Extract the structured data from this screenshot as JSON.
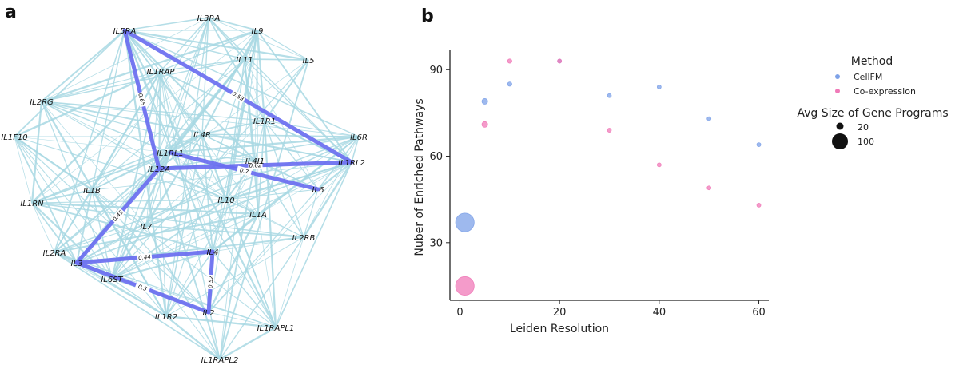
{
  "panels": {
    "a": {
      "letter": "a"
    },
    "b": {
      "letter": "b"
    }
  },
  "colors": {
    "bg_edge": "#a8d8e3",
    "hi_edge": "#6a6ef0",
    "cellfm": "#7ea2e8",
    "coexp": "#f07ab8"
  },
  "chart_data": [
    {
      "type": "network",
      "nodes": [
        "IL5RA",
        "IL3RA",
        "IL9",
        "IL11",
        "IL5",
        "IL1RAP",
        "IL2RG",
        "IL1R1",
        "IL6R",
        "IL1F10",
        "IL4R",
        "IL1RL1",
        "IL4I1",
        "IL1RL2",
        "IL12A",
        "IL6",
        "IL1B",
        "IL10",
        "IL1RN",
        "IL1A",
        "IL7",
        "IL2RB",
        "IL2RA",
        "IL3",
        "IL4",
        "IL6ST",
        "IL2",
        "IL1R2",
        "IL1RAPL1",
        "IL1RAPL2"
      ],
      "highlighted_edges": [
        {
          "source": "IL5RA",
          "target": "IL12A",
          "weight": "0.65"
        },
        {
          "source": "IL5RA",
          "target": "IL1RL2",
          "weight": "0.53"
        },
        {
          "source": "IL12A",
          "target": "IL1RL2",
          "weight": "0.62"
        },
        {
          "source": "IL1RL1",
          "target": "IL6",
          "weight": "0.7"
        },
        {
          "source": "IL12A",
          "target": "IL3",
          "weight": "0.45"
        },
        {
          "source": "IL3",
          "target": "IL4",
          "weight": "0.44"
        },
        {
          "source": "IL4",
          "target": "IL2",
          "weight": "0.52"
        },
        {
          "source": "IL3",
          "target": "IL2",
          "weight": "0.5"
        }
      ],
      "background_edges": "dense co-expression connections among all nodes"
    },
    {
      "type": "scatter",
      "xlabel": "Leiden Resolution",
      "ylabel": "Nuber of Enriched Pathways",
      "xlim": [
        -2,
        62
      ],
      "ylim": [
        10,
        97
      ],
      "xticks": [
        0,
        20,
        40,
        60
      ],
      "yticks": [
        30,
        60,
        90
      ],
      "series": [
        {
          "name": "CellFM",
          "color": "#7ea2e8",
          "x": [
            1,
            5,
            10,
            20,
            30,
            40,
            50,
            60
          ],
          "y": [
            37,
            79,
            85,
            93,
            81,
            84,
            73,
            64
          ],
          "size": [
            150,
            14,
            8,
            5,
            4,
            4,
            3,
            3
          ]
        },
        {
          "name": "Co-expression",
          "color": "#f07ab8",
          "x": [
            1,
            5,
            10,
            20,
            30,
            40,
            50,
            60
          ],
          "y": [
            15,
            71,
            93,
            93,
            69,
            57,
            49,
            43
          ],
          "size": [
            150,
            14,
            8,
            6,
            5,
            4,
            3,
            3
          ]
        }
      ],
      "legend": {
        "title": "Method",
        "entries": [
          "CellFM",
          "Co-expression"
        ],
        "size_title": "Avg Size of Gene Programs",
        "size_entries": [
          {
            "label": "20",
            "value": 20
          },
          {
            "label": "100",
            "value": 100
          }
        ]
      }
    }
  ]
}
